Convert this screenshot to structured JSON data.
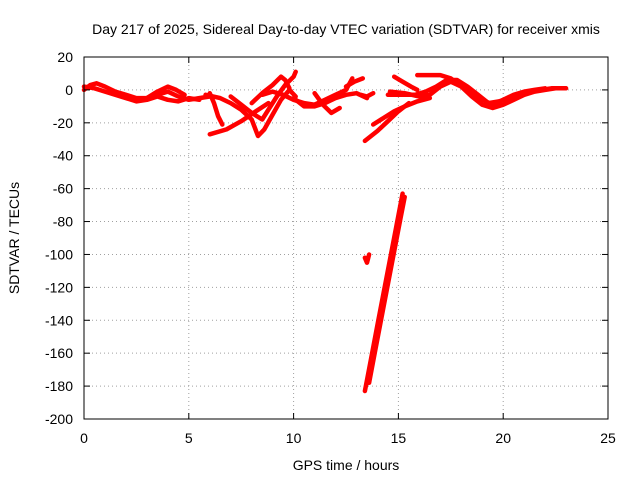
{
  "chart_data": {
    "type": "scatter",
    "title": "Day 217 of 2025, Sidereal Day-to-day VTEC variation (SDTVAR) for receiver xmis",
    "xlabel": "GPS time / hours",
    "ylabel": "SDTVAR / TECUs",
    "xlim": [
      0,
      25
    ],
    "ylim": [
      -200,
      20
    ],
    "xticks": [
      "0",
      "5",
      "10",
      "15",
      "20",
      "25"
    ],
    "yticks": [
      "20",
      "0",
      "-20",
      "-40",
      "-60",
      "-80",
      "-100",
      "-120",
      "-140",
      "-160",
      "-180",
      "-200"
    ],
    "grid": true,
    "series": [
      {
        "values": [
          [
            0.0,
            0
          ],
          [
            0.3,
            3
          ],
          [
            0.6,
            4
          ],
          [
            1.0,
            2
          ],
          [
            1.5,
            -1
          ],
          [
            2.0,
            -3
          ],
          [
            2.5,
            -5
          ],
          [
            3.0,
            -5
          ],
          [
            3.5,
            -3
          ],
          [
            4.0,
            -1
          ],
          [
            4.5,
            -4
          ],
          [
            5.0,
            -6
          ],
          [
            5.5,
            -5
          ],
          [
            6.0,
            -4
          ]
        ]
      },
      {
        "values": [
          [
            0.0,
            2
          ],
          [
            0.5,
            1
          ],
          [
            1.0,
            -1
          ],
          [
            1.5,
            -3
          ],
          [
            2.0,
            -5
          ],
          [
            2.5,
            -7
          ],
          [
            3.0,
            -6
          ],
          [
            3.5,
            -4
          ],
          [
            4.0,
            -6
          ],
          [
            4.5,
            -7
          ],
          [
            5.0,
            -5
          ],
          [
            5.5,
            -6
          ]
        ]
      },
      {
        "values": [
          [
            3.0,
            -5
          ],
          [
            3.5,
            -1
          ],
          [
            4.0,
            2
          ],
          [
            4.4,
            0
          ],
          [
            4.8,
            -3
          ]
        ]
      },
      {
        "values": [
          [
            6.0,
            -2
          ],
          [
            6.2,
            -8
          ],
          [
            6.4,
            -16
          ],
          [
            6.6,
            -21
          ]
        ]
      },
      {
        "values": [
          [
            6.0,
            -27
          ],
          [
            6.8,
            -24
          ],
          [
            7.5,
            -19
          ],
          [
            8.2,
            -13
          ],
          [
            8.8,
            -8
          ]
        ]
      },
      {
        "values": [
          [
            5.8,
            -3
          ],
          [
            6.5,
            -5
          ],
          [
            7.0,
            -8
          ],
          [
            7.5,
            -12
          ],
          [
            8.0,
            -18
          ],
          [
            8.3,
            -28
          ],
          [
            8.6,
            -24
          ],
          [
            9.0,
            -15
          ],
          [
            9.4,
            -6
          ],
          [
            9.8,
            0
          ],
          [
            10.1,
            -4
          ]
        ]
      },
      {
        "values": [
          [
            7.0,
            -4
          ],
          [
            7.5,
            -9
          ],
          [
            8.0,
            -14
          ],
          [
            8.5,
            -18
          ],
          [
            8.8,
            -12
          ],
          [
            9.2,
            -4
          ],
          [
            9.6,
            3
          ],
          [
            10.0,
            8
          ],
          [
            10.1,
            11
          ]
        ]
      },
      {
        "values": [
          [
            8.0,
            -8
          ],
          [
            8.5,
            -2
          ],
          [
            9.0,
            3
          ],
          [
            9.4,
            8
          ],
          [
            9.6,
            6
          ],
          [
            9.8,
            1
          ]
        ]
      },
      {
        "values": [
          [
            8.5,
            -3
          ],
          [
            9.0,
            -1
          ],
          [
            9.5,
            -3
          ],
          [
            10.0,
            -6
          ],
          [
            10.5,
            -8
          ],
          [
            11.0,
            -9
          ],
          [
            11.5,
            -6
          ],
          [
            12.0,
            -3
          ],
          [
            12.5,
            0
          ],
          [
            12.8,
            7
          ]
        ]
      },
      {
        "values": [
          [
            10.0,
            -5
          ],
          [
            10.5,
            -10
          ],
          [
            11.0,
            -10
          ],
          [
            11.5,
            -8
          ],
          [
            12.0,
            -5
          ],
          [
            12.5,
            -3
          ],
          [
            13.0,
            -2
          ],
          [
            13.5,
            -5
          ]
        ]
      },
      {
        "values": [
          [
            11.0,
            -2
          ],
          [
            11.4,
            -9
          ],
          [
            11.8,
            -14
          ],
          [
            12.2,
            -11
          ]
        ]
      },
      {
        "values": [
          [
            12.5,
            2
          ],
          [
            12.9,
            5
          ],
          [
            13.3,
            7
          ]
        ]
      },
      {
        "values": [
          [
            13.2,
            -3
          ],
          [
            13.5,
            -4
          ],
          [
            13.8,
            -2
          ]
        ]
      },
      {
        "values": [
          [
            13.4,
            -31
          ],
          [
            14.0,
            -25
          ],
          [
            14.5,
            -19
          ],
          [
            15.0,
            -13
          ],
          [
            15.5,
            -8
          ]
        ]
      },
      {
        "values": [
          [
            13.8,
            -21
          ],
          [
            14.3,
            -17
          ],
          [
            14.8,
            -13
          ],
          [
            15.3,
            -10
          ],
          [
            15.9,
            -7
          ],
          [
            16.5,
            -5
          ]
        ]
      },
      {
        "values": [
          [
            14.5,
            -3
          ],
          [
            15.2,
            -3
          ],
          [
            15.8,
            -3
          ],
          [
            16.3,
            -1
          ],
          [
            16.8,
            2
          ],
          [
            17.3,
            6
          ],
          [
            17.8,
            6
          ],
          [
            18.3,
            2
          ],
          [
            18.8,
            -3
          ],
          [
            19.3,
            -8
          ],
          [
            19.8,
            -7
          ],
          [
            20.3,
            -5
          ],
          [
            20.8,
            -3
          ],
          [
            21.3,
            -1
          ],
          [
            21.8,
            0
          ],
          [
            22.3,
            1
          ],
          [
            22.9,
            1
          ]
        ]
      },
      {
        "values": [
          [
            14.6,
            -1
          ],
          [
            15.3,
            -2
          ],
          [
            16.0,
            -4
          ],
          [
            16.5,
            -3
          ],
          [
            17.0,
            2
          ],
          [
            17.5,
            5
          ],
          [
            18.0,
            2
          ],
          [
            18.5,
            -3
          ],
          [
            19.0,
            -6
          ],
          [
            19.5,
            -9
          ],
          [
            20.0,
            -6
          ],
          [
            20.5,
            -3
          ],
          [
            21.0,
            -1
          ],
          [
            21.5,
            0
          ],
          [
            22.0,
            1
          ]
        ]
      },
      {
        "values": [
          [
            15.9,
            9
          ],
          [
            16.5,
            9
          ],
          [
            17.0,
            9
          ],
          [
            17.5,
            7
          ],
          [
            18.0,
            2
          ],
          [
            18.5,
            -4
          ],
          [
            19.0,
            -9
          ],
          [
            19.5,
            -11
          ],
          [
            20.0,
            -9
          ],
          [
            20.5,
            -6
          ],
          [
            21.0,
            -3
          ],
          [
            21.5,
            -1
          ],
          [
            22.0,
            0
          ],
          [
            22.5,
            1
          ],
          [
            23.0,
            1
          ]
        ]
      },
      {
        "values": [
          [
            14.8,
            8
          ],
          [
            15.2,
            5
          ],
          [
            15.6,
            2
          ],
          [
            15.9,
            0
          ]
        ]
      },
      {
        "values": [
          [
            13.4,
            -102
          ],
          [
            13.5,
            -105
          ],
          [
            13.6,
            -100
          ]
        ]
      },
      {
        "values": [
          [
            13.4,
            -183
          ],
          [
            13.7,
            -163
          ],
          [
            14.0,
            -143
          ],
          [
            14.3,
            -123
          ],
          [
            14.6,
            -103
          ],
          [
            14.9,
            -83
          ],
          [
            15.2,
            -63
          ]
        ]
      },
      {
        "values": [
          [
            13.6,
            -178
          ],
          [
            13.9,
            -158
          ],
          [
            14.2,
            -138
          ],
          [
            14.5,
            -118
          ],
          [
            14.8,
            -98
          ],
          [
            15.1,
            -78
          ],
          [
            15.3,
            -65
          ]
        ]
      }
    ]
  }
}
